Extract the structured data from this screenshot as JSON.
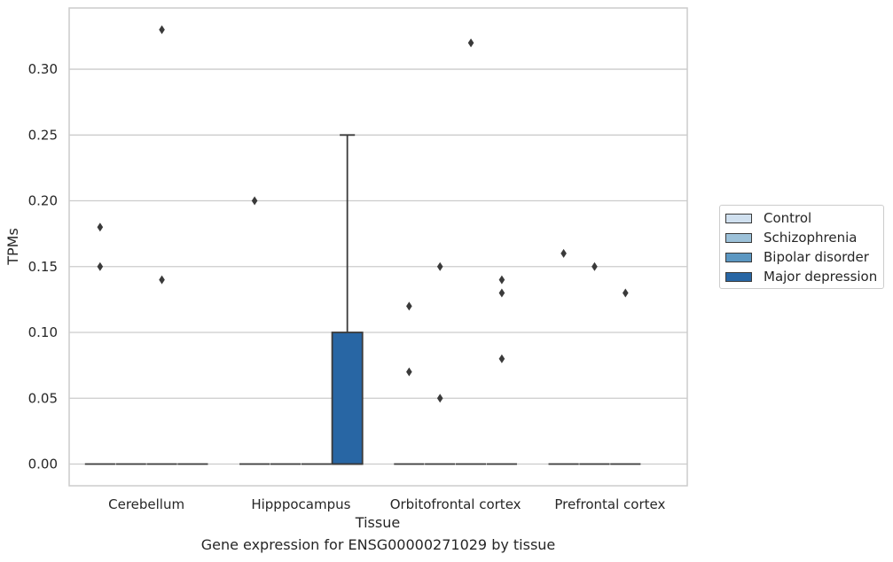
{
  "chart_data": {
    "type": "box",
    "title": "",
    "caption": "Gene expression for ENSG00000271029 by tissue",
    "xlabel": "Tissue",
    "ylabel": "TPMs",
    "categories": [
      "Cerebellum",
      "Hipppocampus",
      "Orbitofrontal cortex",
      "Prefrontal cortex"
    ],
    "ylim": [
      -0.0165,
      0.3465
    ],
    "yticks": [
      0.0,
      0.05,
      0.1,
      0.15,
      0.2,
      0.25,
      0.3
    ],
    "ytick_labels": [
      "0.00",
      "0.05",
      "0.10",
      "0.15",
      "0.20",
      "0.25",
      "0.30"
    ],
    "grid": "horizontal",
    "legend_position": "right",
    "series": [
      {
        "name": "Control",
        "color": "#d0e0ef",
        "boxes": [
          {
            "q1": 0,
            "median": 0,
            "q3": 0,
            "whislo": 0,
            "whishi": 0,
            "fliers": [
              0.15,
              0.18
            ]
          },
          {
            "q1": 0,
            "median": 0,
            "q3": 0,
            "whislo": 0,
            "whishi": 0,
            "fliers": [
              0.2
            ]
          },
          {
            "q1": 0,
            "median": 0,
            "q3": 0,
            "whislo": 0,
            "whishi": 0,
            "fliers": [
              0.07,
              0.12
            ]
          },
          {
            "q1": 0,
            "median": 0,
            "q3": 0,
            "whislo": 0,
            "whishi": 0,
            "fliers": [
              0.16
            ]
          }
        ]
      },
      {
        "name": "Schizophrenia",
        "color": "#9cc1d9",
        "boxes": [
          {
            "q1": 0,
            "median": 0,
            "q3": 0,
            "whislo": 0,
            "whishi": 0,
            "fliers": []
          },
          {
            "q1": 0,
            "median": 0,
            "q3": 0,
            "whislo": 0,
            "whishi": 0,
            "fliers": []
          },
          {
            "q1": 0,
            "median": 0,
            "q3": 0,
            "whislo": 0,
            "whishi": 0,
            "fliers": [
              0.05,
              0.15
            ]
          },
          {
            "q1": 0,
            "median": 0,
            "q3": 0,
            "whislo": 0,
            "whishi": 0,
            "fliers": [
              0.15
            ]
          }
        ]
      },
      {
        "name": "Bipolar disorder",
        "color": "#5b97c2",
        "boxes": [
          {
            "q1": 0,
            "median": 0,
            "q3": 0,
            "whislo": 0,
            "whishi": 0,
            "fliers": [
              0.14,
              0.33
            ]
          },
          {
            "q1": 0,
            "median": 0,
            "q3": 0,
            "whislo": 0,
            "whishi": 0,
            "fliers": []
          },
          {
            "q1": 0,
            "median": 0,
            "q3": 0,
            "whislo": 0,
            "whishi": 0,
            "fliers": [
              0.32
            ]
          },
          {
            "q1": 0,
            "median": 0,
            "q3": 0,
            "whislo": 0,
            "whishi": 0,
            "fliers": [
              0.13
            ]
          }
        ]
      },
      {
        "name": "Major depression",
        "color": "#2866a4",
        "boxes": [
          {
            "q1": 0,
            "median": 0,
            "q3": 0,
            "whislo": 0,
            "whishi": 0,
            "fliers": []
          },
          {
            "q1": 0,
            "median": 0,
            "q3": 0.1,
            "whislo": 0,
            "whishi": 0.25,
            "fliers": []
          },
          {
            "q1": 0,
            "median": 0,
            "q3": 0,
            "whislo": 0,
            "whishi": 0,
            "fliers": [
              0.08,
              0.13,
              0.14
            ]
          },
          null
        ]
      }
    ]
  }
}
